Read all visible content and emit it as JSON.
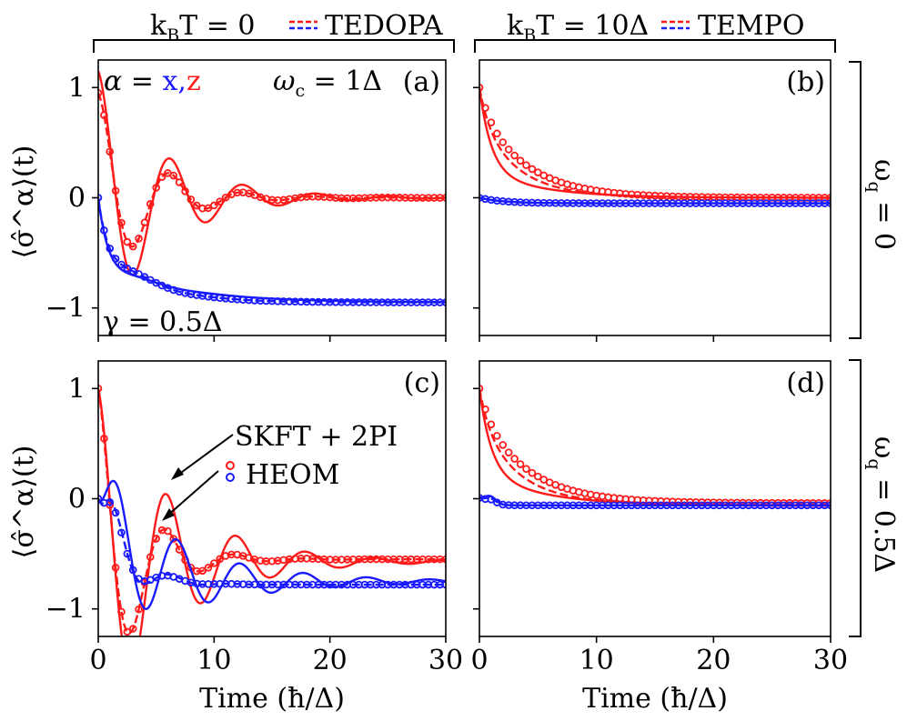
{
  "colors": {
    "x": "#1a1aff",
    "z": "#ff1a1a",
    "axis": "#000000"
  },
  "header": {
    "left": {
      "label_main": "k",
      "label_sub": "B",
      "label_rest": "T = 0",
      "legend_label": "TEDOPA"
    },
    "right": {
      "label_main": "k",
      "label_sub": "B",
      "label_rest": "T = 10Δ",
      "legend_label": "TEMPO"
    }
  },
  "side": {
    "top": {
      "label_main": "ω",
      "label_sub": "q",
      "label_rest": " = 0"
    },
    "bottom": {
      "label_main": "ω",
      "label_sub": "q",
      "label_rest": " = 0.5Δ"
    }
  },
  "annotations": {
    "alpha_label": "α = ",
    "alpha_x": "x",
    "alpha_comma": ",",
    "alpha_z": "z",
    "wc_main": "ω",
    "wc_sub": "c",
    "wc_rest": " = 1Δ",
    "gamma": "γ = 0.5Δ"
  },
  "legend": {
    "skft": "SKFT + 2PI",
    "heom": "HEOM"
  },
  "chart_data": [
    {
      "panel": "(a)",
      "type": "line",
      "xlabel": "",
      "ylabel": "⟨σ̂^α⟩(t)",
      "xlim": [
        0,
        30
      ],
      "ylim": [
        -1.25,
        1.25
      ],
      "xticks": [
        0,
        10,
        20,
        30
      ],
      "yticks": [
        -1,
        0,
        1
      ],
      "xticklabels": [],
      "yticklabels": [
        "−1",
        "0",
        "1"
      ],
      "series": [
        {
          "name": "z SKFT+2PI",
          "style": "solid",
          "color": "z",
          "kind": "osc",
          "params": {
            "a": 1.15,
            "g": 0.18,
            "w": 1.0,
            "b": -0.15,
            "gb": 0.3,
            "dc": 0.0
          }
        },
        {
          "name": "z TEDOPA",
          "style": "dashed",
          "color": "z",
          "kind": "osc",
          "params": {
            "a": 0.95,
            "g": 0.24,
            "w": 1.0,
            "b": 0.05,
            "gb": 0.5,
            "dc": 0.0
          }
        },
        {
          "name": "z HEOM",
          "style": "circles",
          "color": "z",
          "kind": "osc",
          "params": {
            "a": 0.95,
            "g": 0.24,
            "w": 1.0,
            "b": 0.05,
            "gb": 0.5,
            "dc": 0.0
          }
        },
        {
          "name": "x SKFT+2PI",
          "style": "solid",
          "color": "x",
          "kind": "relax",
          "params": {
            "f": -0.95,
            "a1": 0.6,
            "k1": 1.2,
            "a2": 0.4,
            "k2": 0.16,
            "ow": 1.0,
            "oa": -0.08,
            "og": 0.45
          }
        },
        {
          "name": "x TEDOPA",
          "style": "dashed",
          "color": "x",
          "kind": "relax",
          "params": {
            "f": -0.95,
            "a1": 0.35,
            "k1": 1.5,
            "a2": 0.65,
            "k2": 0.26,
            "ow": 1.0,
            "oa": -0.12,
            "og": 0.5
          }
        },
        {
          "name": "x HEOM",
          "style": "circles",
          "color": "x",
          "kind": "relax",
          "params": {
            "f": -0.95,
            "a1": 0.35,
            "k1": 1.5,
            "a2": 0.65,
            "k2": 0.26,
            "ow": 1.0,
            "oa": -0.12,
            "og": 0.5
          }
        }
      ]
    },
    {
      "panel": "(b)",
      "type": "line",
      "xlabel": "",
      "ylabel": "",
      "xlim": [
        0,
        30
      ],
      "ylim": [
        -1.25,
        1.25
      ],
      "xticks": [
        0,
        10,
        20,
        30
      ],
      "yticks": [
        -1,
        0,
        1
      ],
      "xticklabels": [],
      "yticklabels": [],
      "series": [
        {
          "name": "z SKFT+2PI",
          "style": "solid",
          "color": "z",
          "kind": "decay",
          "params": {
            "f": 0.0,
            "a1": 0.75,
            "k1": 1.0,
            "a2": 0.25,
            "k2": 0.2
          }
        },
        {
          "name": "z TEMPO",
          "style": "dashed",
          "color": "z",
          "kind": "decay",
          "params": {
            "f": 0.0,
            "a1": 0.3,
            "k1": 1.2,
            "a2": 0.7,
            "k2": 0.3
          }
        },
        {
          "name": "z HEOM",
          "style": "circles",
          "color": "z",
          "kind": "decay",
          "params": {
            "f": 0.0,
            "a1": 0.2,
            "k1": 1.2,
            "a2": 0.8,
            "k2": 0.25
          }
        },
        {
          "name": "x SKFT+2PI",
          "style": "solid",
          "color": "x",
          "kind": "decay",
          "params": {
            "f": -0.05,
            "a1": 0.05,
            "k1": 0.5,
            "a2": 0.0,
            "k2": 0.1
          }
        },
        {
          "name": "x TEMPO",
          "style": "dashed",
          "color": "x",
          "kind": "decay",
          "params": {
            "f": -0.05,
            "a1": 0.05,
            "k1": 0.5,
            "a2": 0.0,
            "k2": 0.1
          }
        },
        {
          "name": "x HEOM",
          "style": "circles",
          "color": "x",
          "kind": "decay",
          "params": {
            "f": -0.05,
            "a1": 0.05,
            "k1": 0.5,
            "a2": 0.0,
            "k2": 0.1
          }
        }
      ]
    },
    {
      "panel": "(c)",
      "type": "line",
      "xlabel": "Time (ħ/Δ)",
      "ylabel": "⟨σ̂^α⟩(t)",
      "xlim": [
        0,
        30
      ],
      "ylim": [
        -1.25,
        1.25
      ],
      "xticks": [
        0,
        10,
        20,
        30
      ],
      "yticks": [
        -1,
        0,
        1
      ],
      "xticklabels": [
        "0",
        "10",
        "20",
        "30"
      ],
      "yticklabels": [
        "−1",
        "0",
        "1"
      ],
      "series": [
        {
          "name": "z SKFT+2PI",
          "style": "solid",
          "color": "z",
          "kind": "osc2",
          "params": {
            "f": -0.57,
            "a": 1.57,
            "g": 0.16,
            "w": 1.05,
            "la": -0.4,
            "lg": 0.4
          }
        },
        {
          "name": "z TEDOPA",
          "style": "dashed",
          "color": "z",
          "kind": "osc2",
          "params": {
            "f": -0.55,
            "a": 1.55,
            "g": 0.3,
            "w": 1.05,
            "la": -0.3,
            "lg": 0.5
          }
        },
        {
          "name": "z HEOM",
          "style": "circles",
          "color": "z",
          "kind": "osc2",
          "params": {
            "f": -0.55,
            "a": 1.55,
            "g": 0.3,
            "w": 1.05,
            "la": -0.3,
            "lg": 0.5
          }
        },
        {
          "name": "x SKFT+2PI",
          "style": "solid",
          "color": "x",
          "kind": "rise",
          "params": {
            "f": -0.75,
            "g": 0.13,
            "w": 1.15,
            "k": 0.35
          }
        },
        {
          "name": "x TEDOPA",
          "style": "dashed",
          "color": "x",
          "kind": "rise",
          "params": {
            "f": -0.78,
            "g": 0.45,
            "w": 1.2,
            "k": 0.45
          }
        },
        {
          "name": "x HEOM",
          "style": "circles",
          "color": "x",
          "kind": "rise",
          "params": {
            "f": -0.78,
            "g": 0.5,
            "w": 1.2,
            "k": 0.45
          }
        }
      ]
    },
    {
      "panel": "(d)",
      "type": "line",
      "xlabel": "Time (ħ/Δ)",
      "ylabel": "",
      "xlim": [
        0,
        30
      ],
      "ylim": [
        -1.25,
        1.25
      ],
      "xticks": [
        0,
        10,
        20,
        30
      ],
      "yticks": [
        -1,
        0,
        1
      ],
      "xticklabels": [
        "0",
        "10",
        "20",
        "30"
      ],
      "yticklabels": [],
      "series": [
        {
          "name": "z SKFT+2PI",
          "style": "solid",
          "color": "z",
          "kind": "decay",
          "params": {
            "f": -0.06,
            "a1": 0.75,
            "k1": 1.0,
            "a2": 0.31,
            "k2": 0.2
          }
        },
        {
          "name": "z TEMPO",
          "style": "dashed",
          "color": "z",
          "kind": "decay",
          "params": {
            "f": -0.05,
            "a1": 0.3,
            "k1": 1.2,
            "a2": 0.75,
            "k2": 0.3
          }
        },
        {
          "name": "z HEOM",
          "style": "circles",
          "color": "z",
          "kind": "decay",
          "params": {
            "f": -0.04,
            "a1": 0.2,
            "k1": 1.2,
            "a2": 0.84,
            "k2": 0.25
          }
        },
        {
          "name": "x SKFT+2PI",
          "style": "solid",
          "color": "x",
          "kind": "bump",
          "params": {
            "f": -0.06,
            "a": 0.07,
            "c": 0.9,
            "s": 0.5
          }
        },
        {
          "name": "x TEMPO",
          "style": "dashed",
          "color": "x",
          "kind": "bump",
          "params": {
            "f": -0.06,
            "a": 0.05,
            "c": 0.9,
            "s": 0.5
          }
        },
        {
          "name": "x HEOM",
          "style": "circles",
          "color": "x",
          "kind": "bump",
          "params": {
            "f": -0.06,
            "a": 0.04,
            "c": 0.9,
            "s": 0.5
          }
        }
      ]
    }
  ]
}
